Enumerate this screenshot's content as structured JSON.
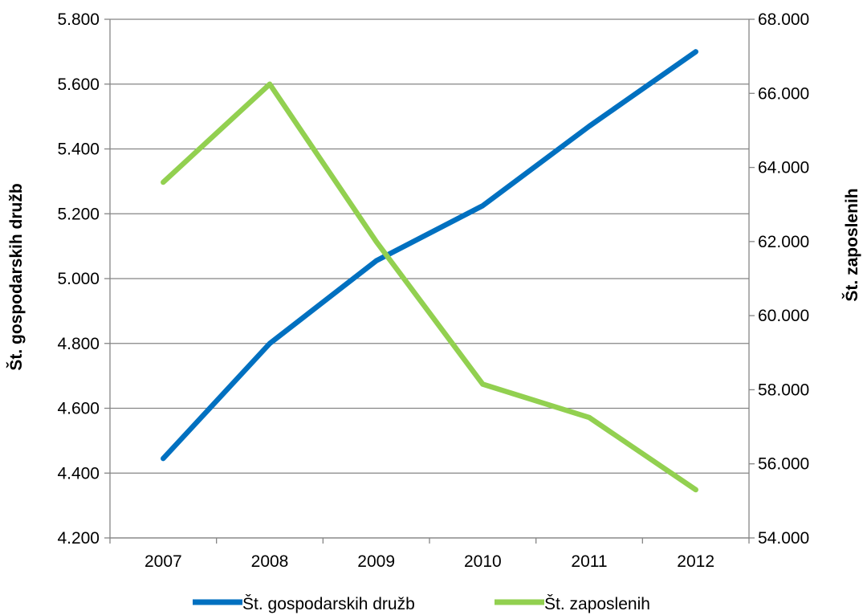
{
  "chart_data": {
    "type": "line",
    "categories": [
      "2007",
      "2008",
      "2009",
      "2010",
      "2011",
      "2012"
    ],
    "y_left": {
      "label": "Št. gospodarskih družb",
      "range": [
        4200,
        5800
      ],
      "ticks": [
        4200,
        4400,
        4600,
        4800,
        5000,
        5200,
        5400,
        5600,
        5800
      ],
      "tick_labels": [
        "4.200",
        "4.400",
        "4.600",
        "4.800",
        "5.000",
        "5.200",
        "5.400",
        "5.600",
        "5.800"
      ]
    },
    "y_right": {
      "label": "Št. zaposlenih",
      "range": [
        54000,
        68000
      ],
      "ticks": [
        54000,
        56000,
        58000,
        60000,
        62000,
        64000,
        66000,
        68000
      ],
      "tick_labels": [
        "54.000",
        "56.000",
        "58.000",
        "60.000",
        "62.000",
        "64.000",
        "66.000",
        "68.000"
      ]
    },
    "series": [
      {
        "name": "Št. gospodarskih družb",
        "axis": "left",
        "color": "#0070C0",
        "values": [
          4445,
          4800,
          5055,
          5225,
          5470,
          5700
        ]
      },
      {
        "name": "Št. zaposlenih",
        "axis": "right",
        "color": "#92D050",
        "values": [
          63600,
          66250,
          62000,
          58150,
          57250,
          55300
        ]
      }
    ],
    "grid": true,
    "legend_position": "bottom"
  }
}
